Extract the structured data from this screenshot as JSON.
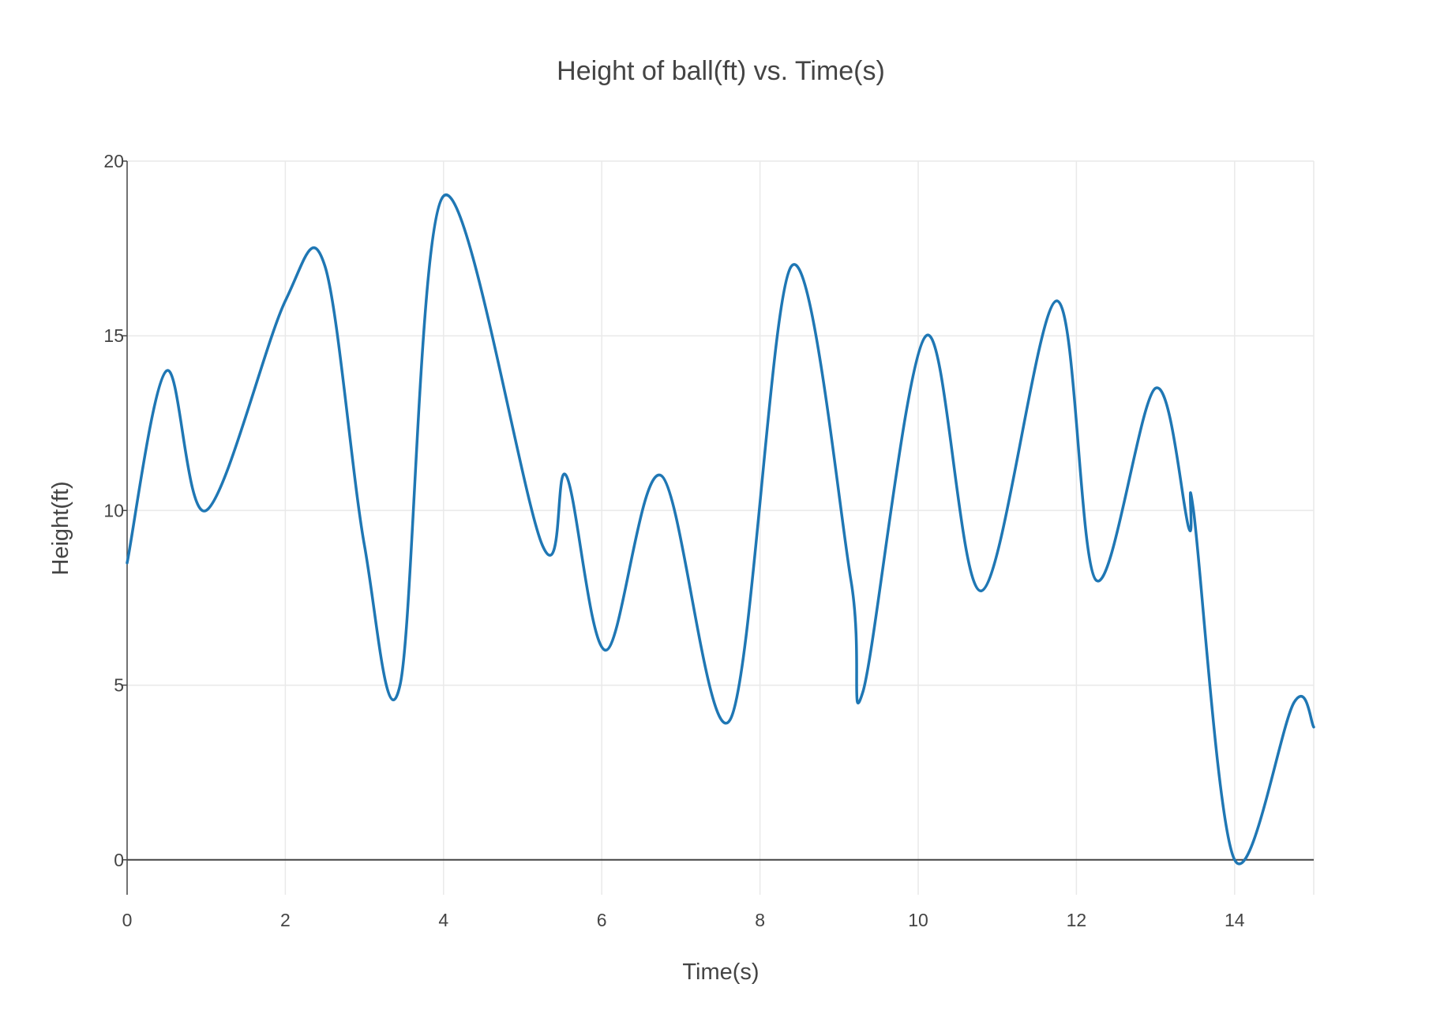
{
  "chart_data": {
    "type": "line",
    "title": "Height of ball(ft) vs. Time(s)",
    "xlabel": "Time(s)",
    "ylabel": "Height(ft)",
    "xlim": [
      0,
      15
    ],
    "ylim": [
      -1,
      20
    ],
    "x_ticks": [
      "0",
      "2",
      "4",
      "6",
      "8",
      "10",
      "12",
      "14"
    ],
    "y_ticks": [
      "0",
      "5",
      "10",
      "15",
      "20"
    ],
    "grid": true,
    "legend": "none",
    "line_color": "#1f77b4",
    "series": [
      {
        "x": [
          0,
          0.5,
          1,
          2,
          2.5,
          3,
          3.45,
          4,
          5.25,
          5.55,
          6.05,
          6.75,
          7.62,
          8.4,
          9.15,
          9.3,
          10.1,
          10.8,
          11.75,
          12.25,
          13.0,
          13.42,
          13.48,
          14.0,
          14.75,
          15.0
        ],
        "y": [
          8.5,
          14,
          10,
          16,
          17,
          9,
          5,
          19,
          9,
          11,
          6,
          11,
          4,
          17,
          8,
          4.8,
          15,
          7.7,
          16,
          8,
          13.5,
          9.5,
          10,
          0,
          4.5,
          3.8
        ]
      }
    ]
  }
}
